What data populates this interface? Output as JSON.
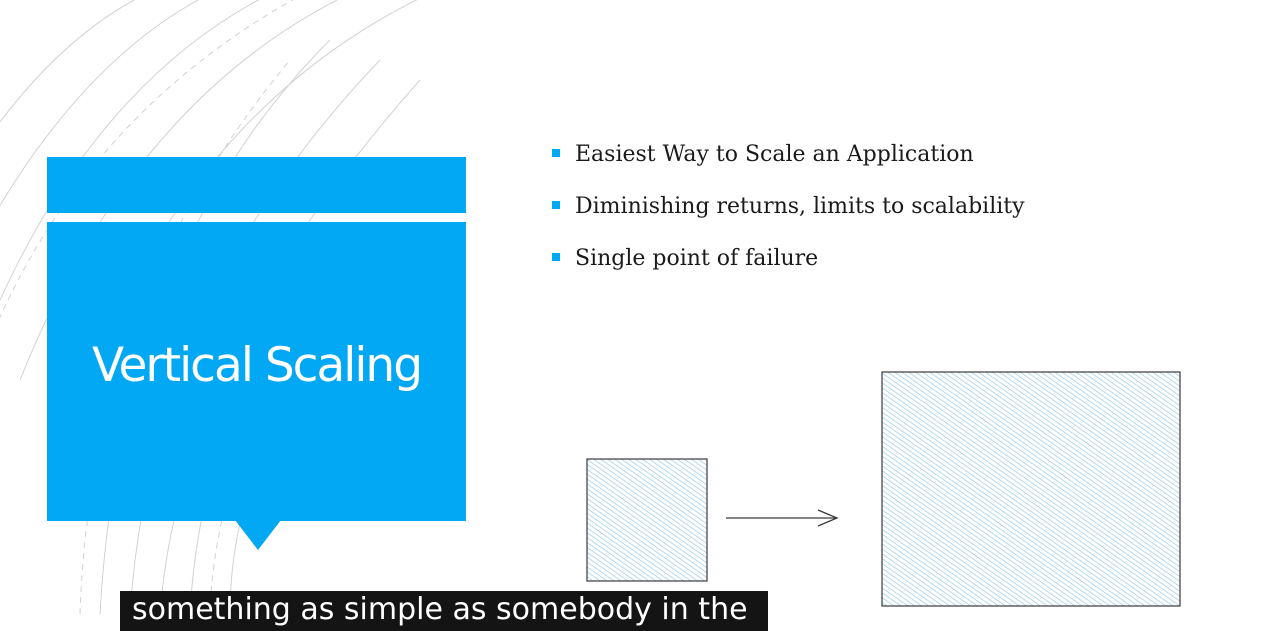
{
  "slide": {
    "title": "Vertical Scaling",
    "bullets": [
      "Easiest Way to Scale an Application",
      "Diminishing returns, limits to scalability",
      "Single point of failure"
    ]
  },
  "caption": {
    "text": "something as simple as somebody in the"
  },
  "colors": {
    "accent": "#02a8f4",
    "hatch": "#8ec4e8",
    "caption_bg": "#141414"
  },
  "icons": [
    "bullet-square-icon",
    "arrow-right-icon"
  ]
}
